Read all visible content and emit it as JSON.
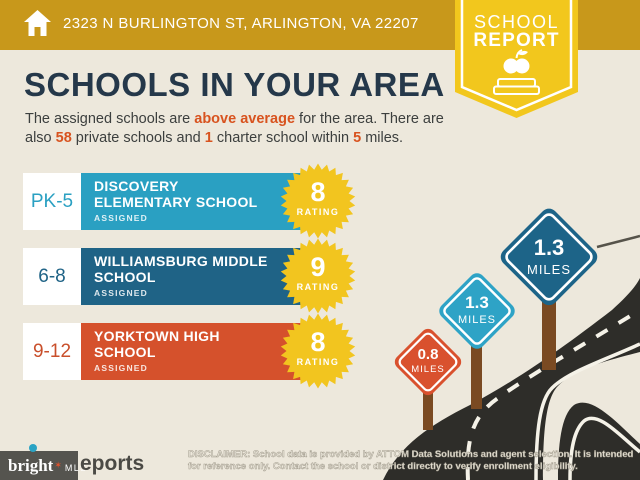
{
  "topbar": {
    "address": "2323 N BURLINGTON ST, ARLINGTON, VA 22207"
  },
  "ribbon": {
    "line1": "SCHOOL",
    "line2": "REPORT"
  },
  "heading": {
    "title": "SCHOOLS IN YOUR AREA"
  },
  "intro": {
    "line1": [
      {
        "t": "The assigned schools are "
      },
      {
        "t": "above average",
        "hl": true
      },
      {
        "t": " for the area. There are"
      }
    ],
    "line2": [
      {
        "t": "also "
      },
      {
        "t": "58",
        "hl": true
      },
      {
        "t": " private schools and "
      },
      {
        "t": "1",
        "hl": true
      },
      {
        "t": " charter school within "
      },
      {
        "t": "5",
        "hl": true
      },
      {
        "t": " miles."
      }
    ]
  },
  "schools": [
    {
      "grades": "PK-5",
      "name_line1": "DISCOVERY",
      "name_line2": "ELEMENTARY SCHOOL",
      "status": "ASSIGNED",
      "rating": "8",
      "rating_label": "RATING",
      "color": "#2AA0C2"
    },
    {
      "grades": "6-8",
      "name_line1": "WILLIAMSBURG MIDDLE",
      "name_line2": "SCHOOL",
      "status": "ASSIGNED",
      "rating": "9",
      "rating_label": "RATING",
      "color": "#1F6386"
    },
    {
      "grades": "9-12",
      "name_line1": "YORKTOWN HIGH",
      "name_line2": "SCHOOL",
      "status": "ASSIGNED",
      "rating": "8",
      "rating_label": "RATING",
      "color": "#D5512C"
    }
  ],
  "signs": [
    {
      "size": "small",
      "value": "0.8",
      "unit": "MILES",
      "color": "#D9512E"
    },
    {
      "size": "medium",
      "value": "1.3",
      "unit": "MILES",
      "color": "#2EA3C6"
    },
    {
      "size": "large",
      "value": "1.3",
      "unit": "MILES",
      "color": "#1D6488"
    }
  ],
  "footer": {
    "logo_overlay": "bright",
    "logo_overlay_star": "✶",
    "logo_overlay_suffix": "MLS",
    "logo_rest": "eports",
    "disclaimer_line1": "DISCLAIMER: School data is provided by ATTOM Data Solutions and agent selection. It is intended",
    "disclaimer_line2": "for reference only. Contact the school or district directly to verify enrollment eligibility."
  },
  "colors": {
    "topbar_gold": "#C8981B",
    "ribbon_yellow": "#F2C71D",
    "background_cream": "#EDE8DC",
    "title_navy": "#25384A",
    "accent_orange": "#D8531F",
    "teal": "#2AA0C2",
    "dark_blue": "#1F6386",
    "red_orange": "#D5512C",
    "rating_yellow": "#F2C51F",
    "road_dark": "#2E2D29",
    "post_brown": "#7A4A22"
  }
}
